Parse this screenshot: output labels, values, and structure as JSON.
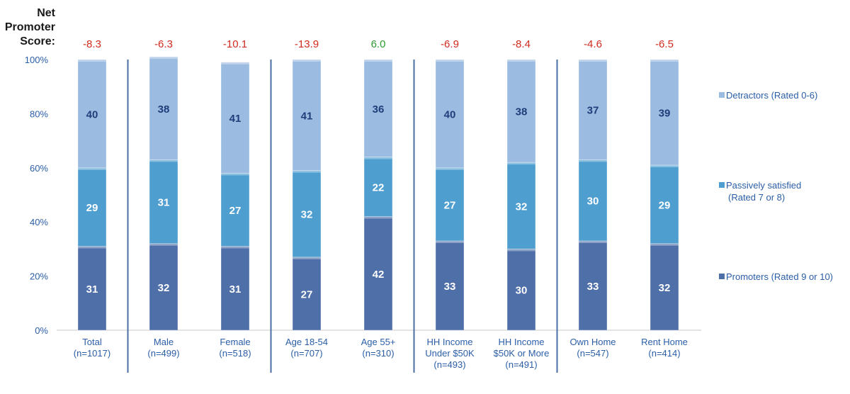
{
  "nps_heading": [
    "Net",
    "Promoter",
    "Score:"
  ],
  "colors": {
    "promoters": "#4f6fa8",
    "passive": "#4f9ed0",
    "detractors": "#9bbbe0",
    "axis_text": "#2b5ea7",
    "nps_negative": "#d12b1f",
    "nps_positive": "#2e9b2e",
    "divider": "#4a6fa5"
  },
  "chart_data": {
    "type": "bar",
    "stacked": true,
    "ylim": [
      0,
      100
    ],
    "yticks": [
      "0%",
      "20%",
      "40%",
      "60%",
      "80%",
      "100%"
    ],
    "grid": false,
    "legend_position": "right",
    "categories": [
      [
        "Total",
        "(n=1017)"
      ],
      [
        "Male",
        "(n=499)"
      ],
      [
        "Female",
        "(n=518)"
      ],
      [
        "Age 18-54",
        "(n=707)"
      ],
      [
        "Age 55+",
        "(n=310)"
      ],
      [
        "HH Income",
        "Under $50K",
        "(n=493)"
      ],
      [
        "HH Income",
        "$50K or More",
        "(n=491)"
      ],
      [
        "Own Home",
        "(n=547)"
      ],
      [
        "Rent Home",
        "(n=414)"
      ]
    ],
    "nps": [
      "-8.3",
      "-6.3",
      "-10.1",
      "-13.9",
      "6.0",
      "-6.9",
      "-8.4",
      "-4.6",
      "-6.5"
    ],
    "series": [
      {
        "name": "Promoters (Rated 9 or 10)",
        "values": [
          31,
          32,
          31,
          27,
          42,
          33,
          30,
          33,
          32
        ]
      },
      {
        "name": "Passively satisfied (Rated 7 or 8)",
        "values": [
          29,
          31,
          27,
          32,
          22,
          27,
          32,
          30,
          29
        ]
      },
      {
        "name": "Detractors (Rated 0-6)",
        "values": [
          40,
          38,
          41,
          41,
          36,
          40,
          38,
          37,
          39
        ]
      }
    ],
    "legend": [
      [
        "Detractors (Rated 0-6)"
      ],
      [
        "Passively satisfied",
        "(Rated 7 or 8)"
      ],
      [
        "Promoters (Rated 9 or 10)"
      ]
    ],
    "group_dividers_after": [
      0,
      2,
      4,
      6
    ]
  }
}
